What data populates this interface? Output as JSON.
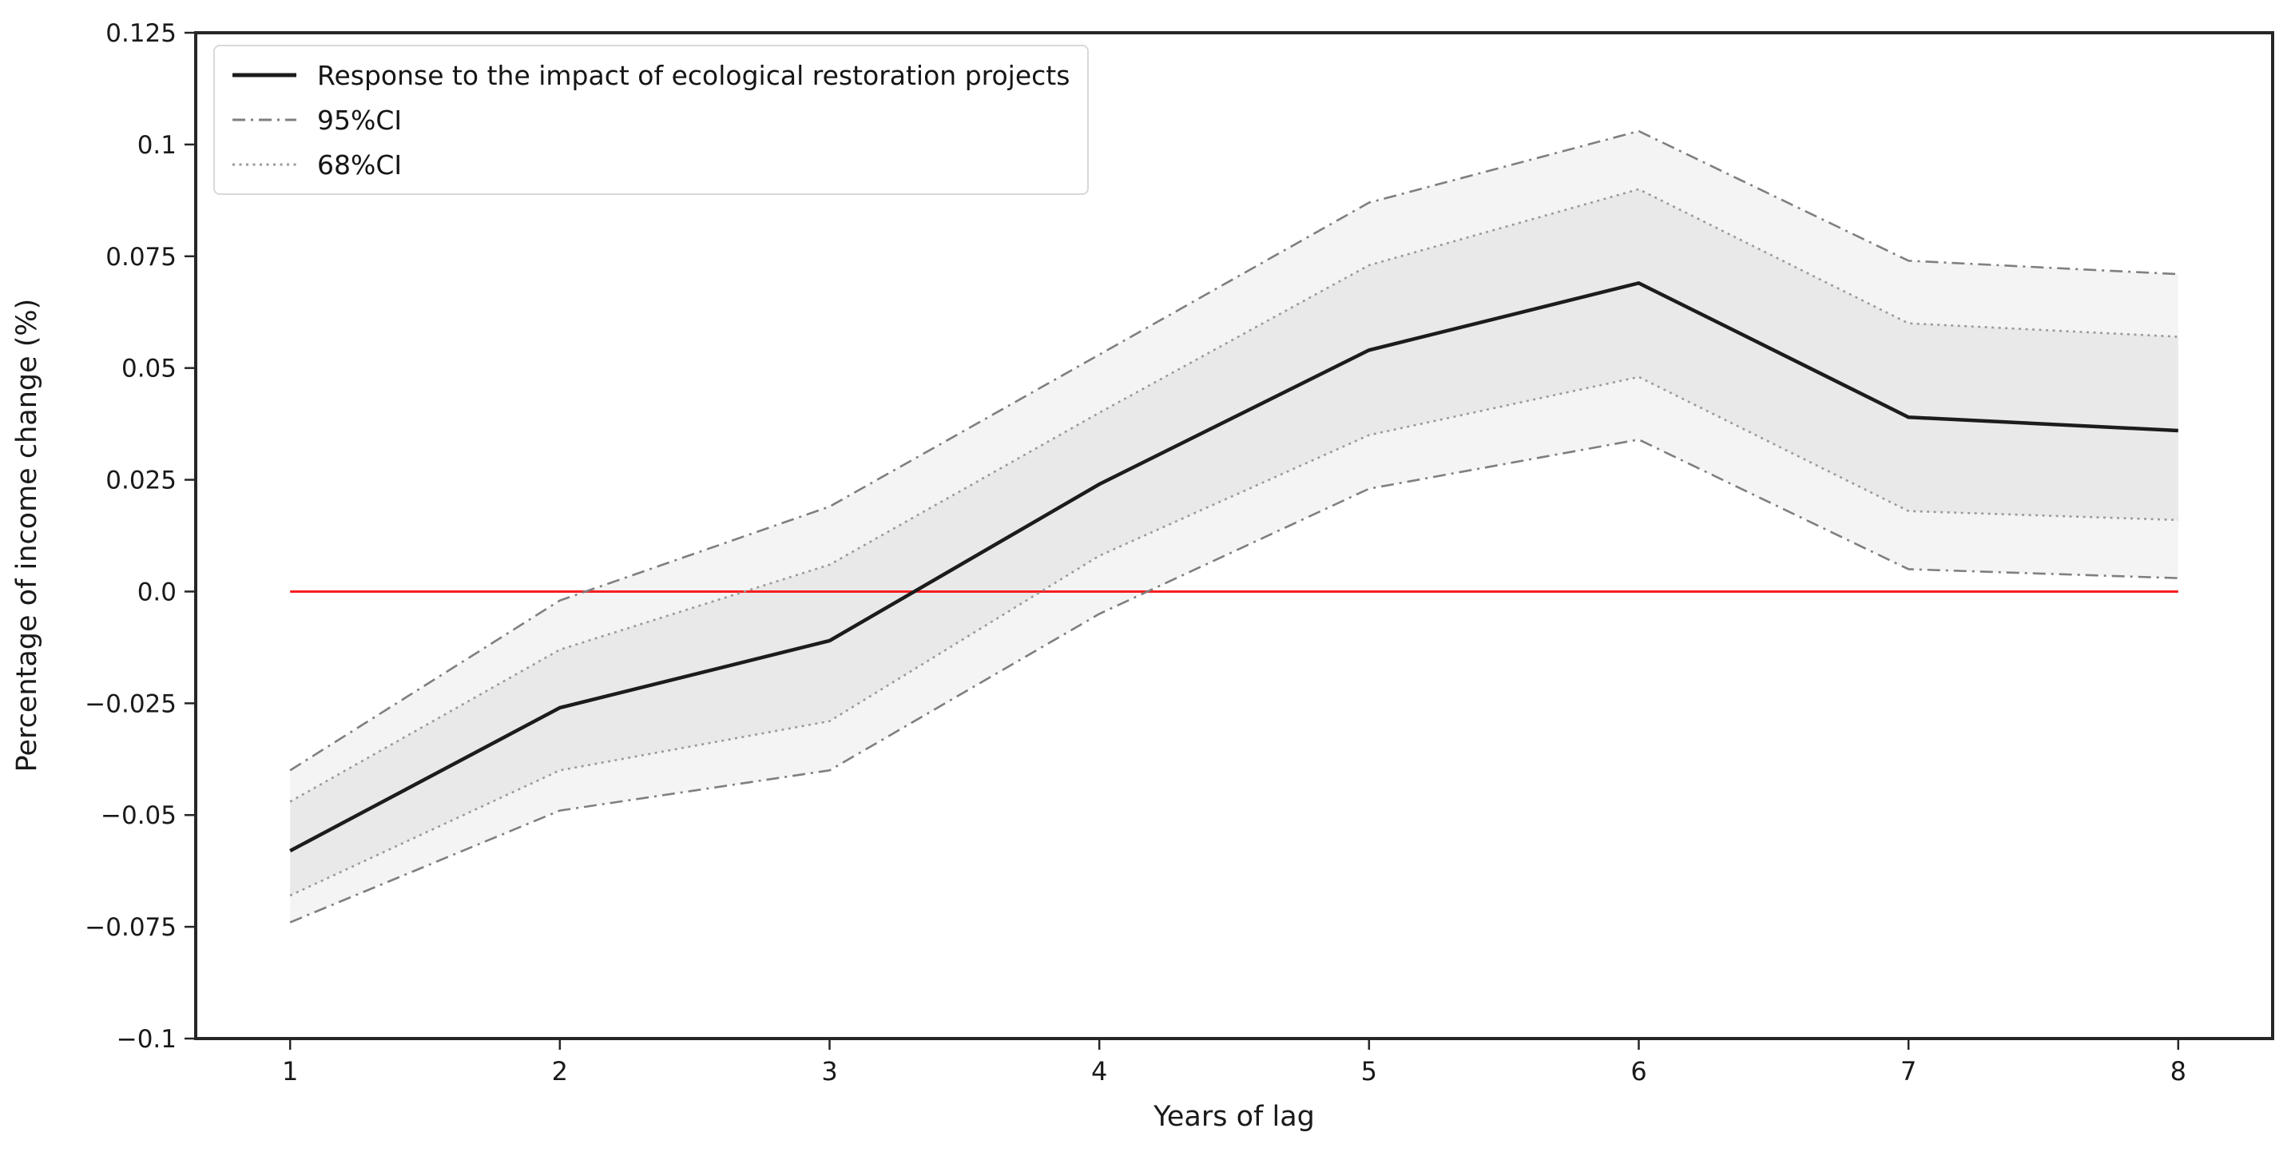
{
  "figure": {
    "background": "#ffffff"
  },
  "chart_data": {
    "type": "line",
    "title": "",
    "xlabel": "Years of lag",
    "ylabel": "Percentage of income change (%)",
    "x": [
      1,
      2,
      3,
      4,
      5,
      6,
      7,
      8
    ],
    "xlim": [
      0.65,
      8.35
    ],
    "ylim": [
      -0.1,
      0.125
    ],
    "grid": false,
    "legend_position": "upper-left",
    "x_tick_labels": [
      "1",
      "2",
      "3",
      "4",
      "5",
      "6",
      "7",
      "8"
    ],
    "y_tick_values": [
      0.125,
      0.1,
      0.075,
      0.05,
      0.025,
      0.0,
      -0.025,
      -0.05,
      -0.075,
      -0.1
    ],
    "y_tick_labels": [
      "0.125",
      "0.1",
      "0.075",
      "0.05",
      "0.025",
      "0.0",
      "−0.025",
      "−0.05",
      "−0.075",
      "−0.1"
    ],
    "series": [
      {
        "name": "95%CI",
        "role": "band",
        "linestyle": "dashdot",
        "color": "#7f7f7f",
        "line_width": 2.6,
        "fill": "#f4f4f4",
        "upper": [
          -0.04,
          -0.002,
          0.019,
          0.053,
          0.087,
          0.103,
          0.074,
          0.071
        ],
        "lower": [
          -0.074,
          -0.049,
          -0.04,
          -0.005,
          0.023,
          0.034,
          0.005,
          0.003
        ]
      },
      {
        "name": "68%CI",
        "role": "band",
        "linestyle": "dotted",
        "color": "#9a9a9a",
        "line_width": 2.6,
        "fill": "#e9e9e9",
        "upper": [
          -0.047,
          -0.013,
          0.006,
          0.04,
          0.073,
          0.09,
          0.06,
          0.057
        ],
        "lower": [
          -0.068,
          -0.04,
          -0.029,
          0.008,
          0.035,
          0.048,
          0.018,
          0.016
        ]
      },
      {
        "name": "zero line",
        "role": "hline",
        "color": "#f81e1e",
        "line_width": 3,
        "y": 0.0,
        "x_start": 1,
        "x_end": 8
      },
      {
        "name": "Response to the impact of ecological restoration projects",
        "role": "line",
        "linestyle": "solid",
        "color": "#1c1c1c",
        "line_width": 4.5,
        "values": [
          -0.058,
          -0.026,
          -0.011,
          0.024,
          0.054,
          0.069,
          0.039,
          0.036
        ]
      }
    ],
    "spine_color": "#262626"
  },
  "legend": {
    "items": [
      {
        "label": "Response to the impact of ecological restoration projects",
        "linestyle": "solid",
        "color": "#1c1c1c"
      },
      {
        "label": "95%CI",
        "linestyle": "dashdot",
        "color": "#7f7f7f"
      },
      {
        "label": "68%CI",
        "linestyle": "dotted",
        "color": "#9a9a9a"
      }
    ]
  }
}
